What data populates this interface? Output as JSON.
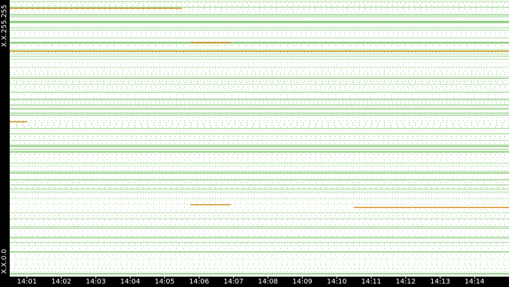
{
  "chart_data": {
    "type": "heatmap",
    "title": "",
    "xlabel": "",
    "ylabel": "",
    "y_axis": {
      "top_label": "X.X.255.255",
      "bottom_label": "X.X.0.0"
    },
    "x_ticks": [
      "14:01",
      "14:02",
      "14:03",
      "14:04",
      "14:05",
      "14:06",
      "14:07",
      "14:08",
      "14:09",
      "14:10",
      "14:11",
      "14:12",
      "14:13",
      "14:14"
    ],
    "x_range": [
      "14:00:30",
      "14:15:00"
    ],
    "colors": {
      "background": "#ffffff",
      "activity": "#7dc66b",
      "highlight": "#d08a10",
      "axis": "#000000",
      "text": "#ffffff"
    },
    "highlights": [
      {
        "start": "14:00:30",
        "end": "14:05:30",
        "y_fraction": 0.97
      },
      {
        "start": "14:05:45",
        "end": "14:06:55",
        "y_fraction": 0.846
      },
      {
        "start": "14:00:30",
        "end": "14:15:00",
        "y_fraction": 0.815
      },
      {
        "start": "14:00:30",
        "end": "14:01:00",
        "y_fraction": 0.56
      },
      {
        "start": "14:05:45",
        "end": "14:06:55",
        "y_fraction": 0.26
      },
      {
        "start": "14:10:30",
        "end": "14:15:00",
        "y_fraction": 0.25
      }
    ]
  }
}
